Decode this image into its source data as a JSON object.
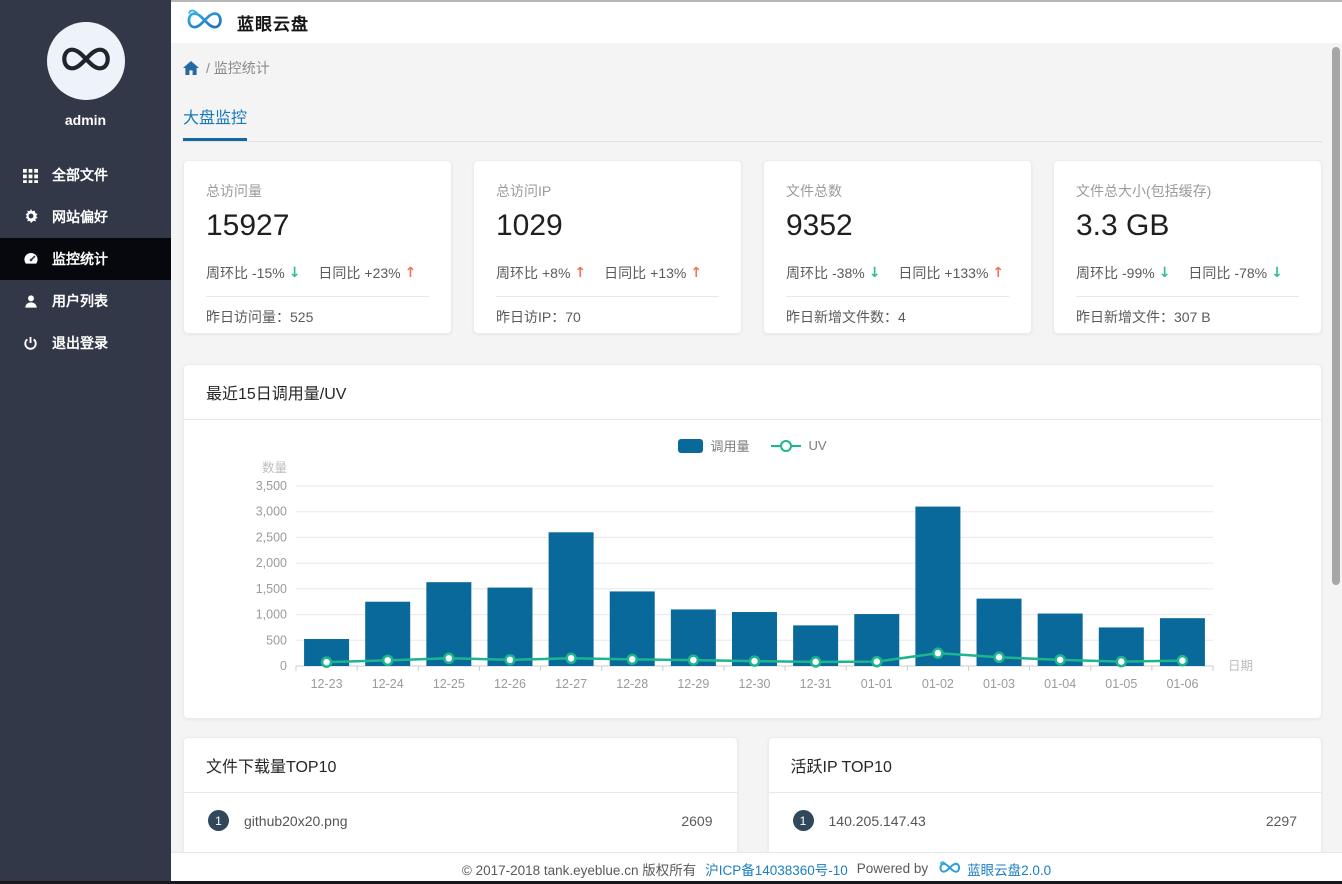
{
  "app": {
    "title": "蓝眼云盘",
    "user": "admin"
  },
  "sidebar": {
    "items": [
      {
        "label": "全部文件",
        "icon": "grid-icon",
        "active": false
      },
      {
        "label": "网站偏好",
        "icon": "gear-icon",
        "active": false
      },
      {
        "label": "监控统计",
        "icon": "dashboard-icon",
        "active": true
      },
      {
        "label": "用户列表",
        "icon": "user-icon",
        "active": false
      },
      {
        "label": "退出登录",
        "icon": "power-icon",
        "active": false
      }
    ]
  },
  "breadcrumb": {
    "separator": "/",
    "page": "监控统计"
  },
  "tabs": {
    "active": "大盘监控"
  },
  "stat_cards": [
    {
      "title": "总访问量",
      "value": "15927",
      "deltas": [
        {
          "label": "周环比",
          "value": "-15%",
          "dir": "down"
        },
        {
          "label": "日同比",
          "value": "+23%",
          "dir": "up"
        }
      ],
      "footer_label": "昨日访问量：",
      "footer_value": "525"
    },
    {
      "title": "总访问IP",
      "value": "1029",
      "deltas": [
        {
          "label": "周环比",
          "value": "+8%",
          "dir": "up"
        },
        {
          "label": "日同比",
          "value": "+13%",
          "dir": "up"
        }
      ],
      "footer_label": "昨日访IP：",
      "footer_value": "70"
    },
    {
      "title": "文件总数",
      "value": "9352",
      "deltas": [
        {
          "label": "周环比",
          "value": "-38%",
          "dir": "down"
        },
        {
          "label": "日同比",
          "value": "+133%",
          "dir": "up"
        }
      ],
      "footer_label": "昨日新增文件数：",
      "footer_value": "4"
    },
    {
      "title": "文件总大小(包括缓存)",
      "value": "3.3 GB",
      "deltas": [
        {
          "label": "周环比",
          "value": "-99%",
          "dir": "down"
        },
        {
          "label": "日同比",
          "value": "-78%",
          "dir": "down"
        }
      ],
      "footer_label": "昨日新增文件：",
      "footer_value": "307 B"
    }
  ],
  "chart_card": {
    "title": "最近15日调用量/UV"
  },
  "chart_data": {
    "type": "bar",
    "title": "最近15日调用量/UV",
    "categories": [
      "12-23",
      "12-24",
      "12-25",
      "12-26",
      "12-27",
      "12-28",
      "12-29",
      "12-30",
      "12-31",
      "01-01",
      "01-02",
      "01-03",
      "01-04",
      "01-05",
      "01-06"
    ],
    "series": [
      {
        "name": "调用量",
        "type": "bar",
        "color": "#0a699b",
        "values": [
          525,
          1250,
          1630,
          1525,
          2600,
          1450,
          1100,
          1050,
          790,
          1010,
          3100,
          1310,
          1020,
          750,
          930
        ]
      },
      {
        "name": "UV",
        "type": "line",
        "color": "#1db58e",
        "values": [
          75,
          110,
          150,
          120,
          150,
          130,
          115,
          95,
          80,
          85,
          250,
          170,
          120,
          85,
          105
        ]
      }
    ],
    "xlabel": "日期",
    "ylabel": "数量",
    "ylim": [
      0,
      3500
    ],
    "ytick_step": 500,
    "grid": true,
    "legend_position": "top-center"
  },
  "top_lists": [
    {
      "title": "文件下载量TOP10",
      "items": [
        {
          "rank": "1",
          "name": "github20x20.png",
          "value": "2609"
        }
      ]
    },
    {
      "title": "活跃IP TOP10",
      "items": [
        {
          "rank": "1",
          "name": "140.205.147.43",
          "value": "2297"
        }
      ]
    }
  ],
  "footer": {
    "copyright": "© 2017-2018 tank.eyeblue.cn 版权所有",
    "icp": "沪ICP备14038360号-10",
    "powered_by": "Powered by",
    "brand": "蓝眼云盘2.0.0"
  },
  "colors": {
    "sidebar_bg": "#333848",
    "sidebar_active_bg": "#07080d",
    "tab_blue": "#1779ba",
    "bar_series": "#0a699b",
    "line_series": "#1db58e",
    "up_arrow": "#f2725e",
    "down_arrow": "#2cbd98",
    "link_blue": "#1b7ec2",
    "badge_bg": "#30485a"
  }
}
